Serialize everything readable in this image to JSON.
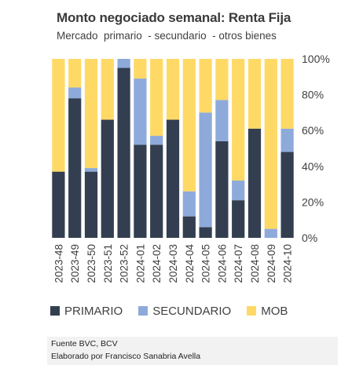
{
  "chart_data": {
    "type": "bar",
    "stacked": true,
    "title": "Monto negociado semanal: Renta Fija",
    "subtitle": "Mercado  primario  - secundario  - otros bienes",
    "categories": [
      "2023-48",
      "2023-49",
      "2023-50",
      "2023-51",
      "2023-52",
      "2024-01",
      "2024-02",
      "2024-03",
      "2024-04",
      "2024-05",
      "2024-06",
      "2024-07",
      "2024-08",
      "2024-09",
      "2024-10"
    ],
    "series": [
      {
        "name": "PRIMARIO",
        "color": "#333f50",
        "values": [
          37,
          78,
          37,
          66,
          95,
          52,
          52,
          66,
          12,
          6,
          54,
          21,
          61,
          0,
          48
        ]
      },
      {
        "name": "SECUNDARIO",
        "color": "#8eaadb",
        "values": [
          0,
          6,
          2,
          0,
          5,
          37,
          5,
          0,
          14,
          64,
          23,
          11,
          0,
          5,
          13
        ]
      },
      {
        "name": "MOB",
        "color": "#ffd966",
        "values": [
          63,
          16,
          61,
          34,
          0,
          11,
          43,
          34,
          74,
          30,
          23,
          68,
          39,
          95,
          39
        ]
      }
    ],
    "ylim": [
      0,
      100
    ],
    "yticks": [
      "0%",
      "20%",
      "40%",
      "60%",
      "80%",
      "100%"
    ],
    "y_axis_position": "right",
    "legend_position": "bottom",
    "grid": false
  },
  "footer": {
    "source": "Fuente BVC, BCV",
    "author": "Elaborado por Francisco Sanabria Avella"
  }
}
